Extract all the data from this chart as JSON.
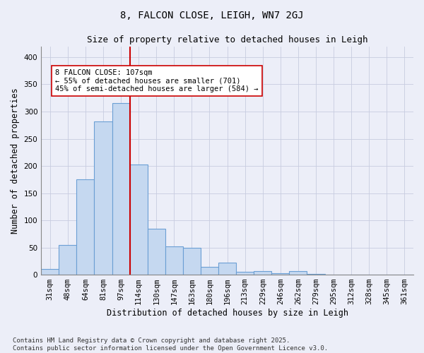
{
  "title1": "8, FALCON CLOSE, LEIGH, WN7 2GJ",
  "title2": "Size of property relative to detached houses in Leigh",
  "xlabel": "Distribution of detached houses by size in Leigh",
  "ylabel": "Number of detached properties",
  "bar_labels": [
    "31sqm",
    "48sqm",
    "64sqm",
    "81sqm",
    "97sqm",
    "114sqm",
    "130sqm",
    "147sqm",
    "163sqm",
    "180sqm",
    "196sqm",
    "213sqm",
    "229sqm",
    "246sqm",
    "262sqm",
    "279sqm",
    "295sqm",
    "312sqm",
    "328sqm",
    "345sqm",
    "361sqm"
  ],
  "bar_values": [
    10,
    54,
    175,
    282,
    316,
    202,
    84,
    52,
    50,
    14,
    22,
    5,
    7,
    3,
    6,
    1,
    0,
    0,
    0,
    0,
    0
  ],
  "bar_color": "#c5d8f0",
  "bar_edge_color": "#6b9fd4",
  "vline_x": 4.5,
  "vline_color": "#cc0000",
  "annotation_text": "8 FALCON CLOSE: 107sqm\n← 55% of detached houses are smaller (701)\n45% of semi-detached houses are larger (584) →",
  "annotation_box_color": "white",
  "annotation_box_edge_color": "#cc0000",
  "ylim": [
    0,
    420
  ],
  "yticks": [
    0,
    50,
    100,
    150,
    200,
    250,
    300,
    350,
    400
  ],
  "grid_color": "#c8cce0",
  "background_color": "#eceef8",
  "footer": "Contains HM Land Registry data © Crown copyright and database right 2025.\nContains public sector information licensed under the Open Government Licence v3.0.",
  "title_fontsize": 10,
  "subtitle_fontsize": 9,
  "axis_label_fontsize": 8.5,
  "tick_fontsize": 7.5,
  "annotation_fontsize": 7.5,
  "footer_fontsize": 6.5
}
